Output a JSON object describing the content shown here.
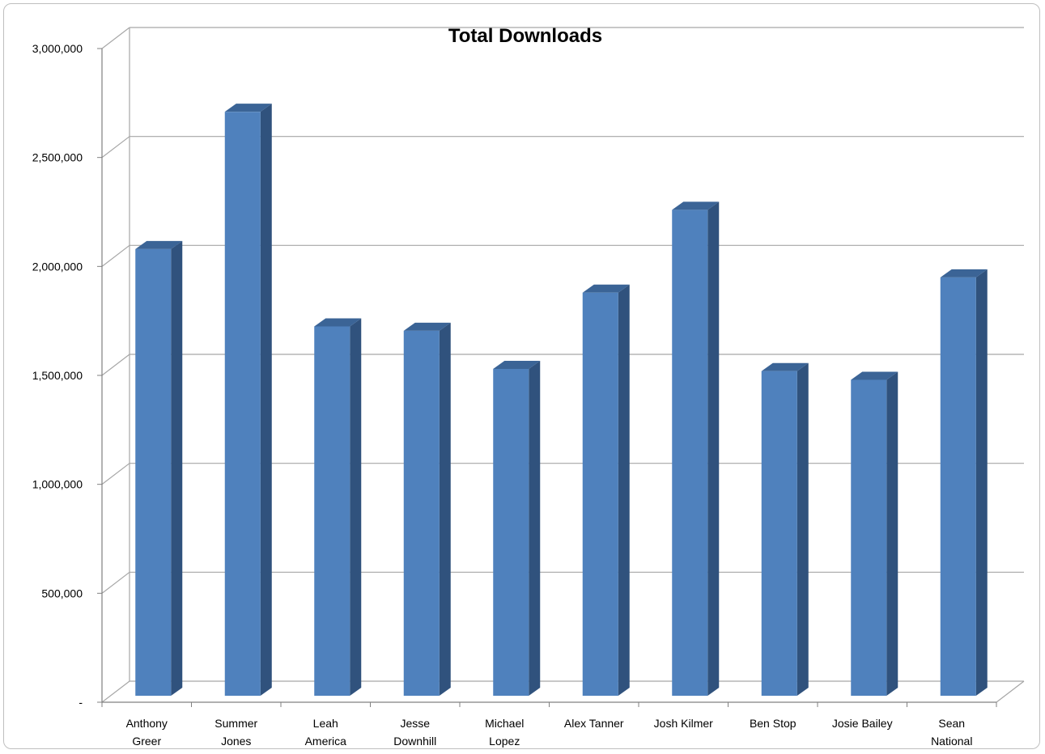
{
  "chart_data": {
    "type": "bar",
    "title": "Total Downloads",
    "xlabel": "",
    "ylabel": "",
    "categories": [
      [
        "Anthony",
        "Greer"
      ],
      [
        "Summer",
        "Jones"
      ],
      [
        "Leah",
        "America"
      ],
      [
        "Jesse",
        "Downhill"
      ],
      [
        "Michael",
        "Lopez"
      ],
      [
        "Alex Tanner"
      ],
      [
        "Josh Kilmer"
      ],
      [
        "Ben Stop"
      ],
      [
        "Josie Bailey"
      ],
      [
        "Sean",
        "National"
      ]
    ],
    "values": [
      2050000,
      2680000,
      1695000,
      1675000,
      1500000,
      1850000,
      2230000,
      1490000,
      1450000,
      1920000
    ],
    "ylim": [
      0,
      3000000
    ],
    "yticks": [
      {
        "value": 0,
        "label": "-"
      },
      {
        "value": 500000,
        "label": "500,000"
      },
      {
        "value": 1000000,
        "label": "1,000,000"
      },
      {
        "value": 1500000,
        "label": "1,500,000"
      },
      {
        "value": 2000000,
        "label": "2,000,000"
      },
      {
        "value": 2500000,
        "label": "2,500,000"
      },
      {
        "value": 3000000,
        "label": "3,000,000"
      }
    ],
    "grid": true,
    "legend": "none",
    "colors": {
      "bar_front": "#4f81bd",
      "bar_side": "#30527d",
      "bar_top": "#3b6496",
      "grid": "#a6a6a6"
    }
  }
}
